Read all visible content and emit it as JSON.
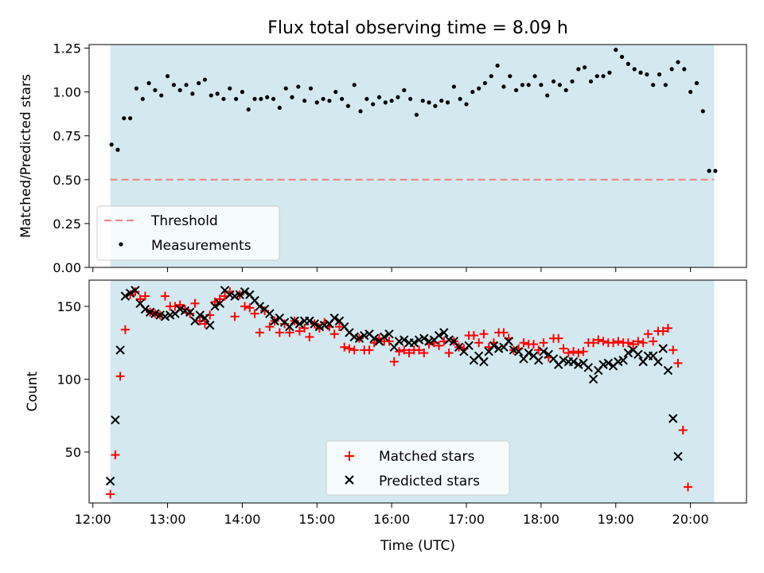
{
  "figure": {
    "title": "Flux total observing time = 8.09 h"
  },
  "chart_data": [
    {
      "type": "scatter",
      "panel": "top",
      "title": "Flux total observing time = 8.09 h",
      "xlabel": "",
      "ylabel": "Matched/Predicted stars",
      "xlim": [
        "11:57",
        "20:45"
      ],
      "ylim": [
        0.0,
        1.27
      ],
      "yticks": [
        "0.00",
        "0.25",
        "0.50",
        "0.75",
        "1.00",
        "1.25"
      ],
      "shaded_interval": [
        "12:14",
        "20:19"
      ],
      "shade_color": "#d3e9ef",
      "threshold": {
        "name": "Threshold",
        "value": 0.5,
        "color": "#f08080",
        "style": "dashed"
      },
      "legend": {
        "position": "lower-left",
        "entries": [
          "Threshold",
          "Measurements"
        ]
      },
      "series": [
        {
          "name": "Measurements",
          "color": "#000000",
          "marker": "dot",
          "x": [
            "12:15",
            "12:20",
            "12:25",
            "12:30",
            "12:35",
            "12:40",
            "12:45",
            "12:50",
            "12:55",
            "13:00",
            "13:05",
            "13:10",
            "13:15",
            "13:20",
            "13:25",
            "13:30",
            "13:35",
            "13:40",
            "13:45",
            "13:50",
            "13:55",
            "14:00",
            "14:05",
            "14:10",
            "14:15",
            "14:20",
            "14:25",
            "14:30",
            "14:35",
            "14:40",
            "14:45",
            "14:50",
            "14:55",
            "15:00",
            "15:05",
            "15:10",
            "15:15",
            "15:20",
            "15:25",
            "15:30",
            "15:35",
            "15:40",
            "15:45",
            "15:50",
            "15:55",
            "16:00",
            "16:05",
            "16:10",
            "16:15",
            "16:20",
            "16:25",
            "16:30",
            "16:35",
            "16:40",
            "16:45",
            "16:50",
            "16:55",
            "17:00",
            "17:05",
            "17:10",
            "17:15",
            "17:20",
            "17:25",
            "17:30",
            "17:35",
            "17:40",
            "17:45",
            "17:50",
            "17:55",
            "18:00",
            "18:05",
            "18:10",
            "18:15",
            "18:20",
            "18:25",
            "18:30",
            "18:35",
            "18:40",
            "18:45",
            "18:50",
            "18:55",
            "19:00",
            "19:05",
            "19:10",
            "19:15",
            "19:20",
            "19:25",
            "19:30",
            "19:35",
            "19:40",
            "19:45",
            "19:50",
            "19:55",
            "20:00",
            "20:05",
            "20:10",
            "20:15",
            "20:20"
          ],
          "y": [
            0.7,
            0.67,
            0.85,
            0.85,
            1.02,
            0.96,
            1.05,
            1.01,
            0.98,
            1.09,
            1.04,
            1.01,
            1.04,
            0.99,
            1.05,
            1.07,
            0.98,
            0.99,
            0.96,
            1.02,
            0.96,
            1.0,
            0.9,
            0.96,
            0.96,
            0.97,
            0.96,
            0.91,
            1.02,
            0.97,
            1.03,
            0.95,
            1.02,
            0.94,
            0.96,
            0.95,
            1.0,
            0.96,
            0.92,
            1.04,
            0.89,
            0.96,
            0.93,
            0.97,
            0.94,
            0.95,
            0.97,
            1.01,
            0.96,
            0.87,
            0.95,
            0.94,
            0.92,
            0.95,
            0.94,
            1.03,
            0.96,
            0.93,
            1.0,
            1.02,
            1.05,
            1.09,
            1.15,
            1.03,
            1.09,
            1.01,
            1.04,
            1.04,
            1.09,
            1.04,
            0.98,
            1.06,
            1.04,
            1.01,
            1.06,
            1.13,
            1.14,
            1.06,
            1.09,
            1.09,
            1.11,
            1.24,
            1.2,
            1.16,
            1.13,
            1.11,
            1.1,
            1.04,
            1.1,
            1.04,
            1.13,
            1.17,
            1.13,
            1.0,
            1.05,
            0.89,
            0.55,
            0.55
          ]
        }
      ]
    },
    {
      "type": "scatter",
      "panel": "bottom",
      "xlabel": "Time (UTC)",
      "ylabel": "Count",
      "xlim": [
        "11:57",
        "20:45"
      ],
      "ylim": [
        15,
        168
      ],
      "xticks": [
        "12:00",
        "13:00",
        "14:00",
        "15:00",
        "16:00",
        "17:00",
        "18:00",
        "19:00",
        "20:00"
      ],
      "yticks": [
        "50",
        "100",
        "150"
      ],
      "shaded_interval": [
        "12:14",
        "20:19"
      ],
      "shade_color": "#d3e9ef",
      "legend": {
        "position": "lower-center",
        "entries": [
          "Matched stars",
          "Predicted stars"
        ]
      },
      "x": [
        "12:14",
        "12:18",
        "12:22",
        "12:26",
        "12:30",
        "12:34",
        "12:38",
        "12:42",
        "12:46",
        "12:50",
        "12:54",
        "12:58",
        "13:02",
        "13:06",
        "13:10",
        "13:14",
        "13:18",
        "13:22",
        "13:26",
        "13:30",
        "13:34",
        "13:38",
        "13:42",
        "13:46",
        "13:50",
        "13:54",
        "13:58",
        "14:02",
        "14:06",
        "14:10",
        "14:14",
        "14:18",
        "14:22",
        "14:26",
        "14:30",
        "14:34",
        "14:38",
        "14:42",
        "14:46",
        "14:50",
        "14:54",
        "14:58",
        "15:02",
        "15:06",
        "15:10",
        "15:14",
        "15:18",
        "15:22",
        "15:26",
        "15:30",
        "15:34",
        "15:38",
        "15:42",
        "15:46",
        "15:50",
        "15:54",
        "15:58",
        "16:02",
        "16:06",
        "16:10",
        "16:14",
        "16:18",
        "16:22",
        "16:26",
        "16:30",
        "16:34",
        "16:38",
        "16:42",
        "16:46",
        "16:50",
        "16:54",
        "16:58",
        "17:02",
        "17:06",
        "17:10",
        "17:14",
        "17:18",
        "17:22",
        "17:26",
        "17:30",
        "17:34",
        "17:38",
        "17:42",
        "17:46",
        "17:50",
        "17:54",
        "17:58",
        "18:02",
        "18:06",
        "18:10",
        "18:14",
        "18:18",
        "18:22",
        "18:26",
        "18:30",
        "18:34",
        "18:38",
        "18:42",
        "18:46",
        "18:50",
        "18:54",
        "18:58",
        "19:02",
        "19:06",
        "19:10",
        "19:14",
        "19:18",
        "19:22",
        "19:26",
        "19:30",
        "19:34",
        "19:38",
        "19:42",
        "19:46",
        "19:50",
        "19:54",
        "19:58",
        "20:02",
        "20:06",
        "20:10",
        "20:14",
        "20:18"
      ],
      "series": [
        {
          "name": "Matched stars",
          "color": "#ff0000",
          "marker": "plus",
          "values": [
            21,
            48,
            102,
            134,
            158,
            160,
            155,
            157,
            146,
            145,
            144,
            157,
            150,
            150,
            151,
            148,
            145,
            152,
            140,
            138,
            144,
            153,
            155,
            157,
            160,
            143,
            158,
            150,
            149,
            145,
            132,
            147,
            136,
            140,
            132,
            138,
            132,
            140,
            133,
            135,
            129,
            138,
            135,
            139,
            136,
            131,
            136,
            122,
            121,
            120,
            128,
            120,
            120,
            125,
            128,
            126,
            126,
            112,
            119,
            120,
            118,
            120,
            120,
            118,
            124,
            125,
            123,
            126,
            118,
            126,
            122,
            121,
            130,
            130,
            125,
            131,
            122,
            125,
            132,
            132,
            128,
            120,
            121,
            125,
            124,
            124,
            120,
            125,
            115,
            128,
            128,
            121,
            118,
            119,
            118,
            119,
            125,
            125,
            127,
            126,
            125,
            125,
            126,
            125,
            125,
            124,
            126,
            125,
            131,
            126,
            133,
            133,
            135,
            120,
            111,
            65,
            26
          ],
          "x_offset_start": 0
        },
        {
          "name": "Predicted stars",
          "color": "#000000",
          "marker": "x",
          "values": [
            30,
            72,
            120,
            157,
            159,
            161,
            152,
            148,
            146,
            145,
            144,
            143,
            144,
            145,
            148,
            147,
            146,
            140,
            144,
            142,
            137,
            150,
            152,
            161,
            158,
            157,
            158,
            160,
            158,
            154,
            150,
            148,
            145,
            140,
            142,
            139,
            136,
            140,
            138,
            140,
            140,
            138,
            136,
            137,
            138,
            142,
            140,
            136,
            132,
            129,
            128,
            130,
            131,
            128,
            126,
            129,
            131,
            122,
            126,
            127,
            125,
            125,
            127,
            128,
            126,
            127,
            130,
            132,
            127,
            126,
            122,
            119,
            123,
            113,
            116,
            112,
            119,
            123,
            121,
            122,
            126,
            120,
            119,
            114,
            118,
            116,
            113,
            119,
            117,
            114,
            110,
            113,
            112,
            112,
            110,
            111,
            108,
            100,
            106,
            110,
            111,
            109,
            112,
            113,
            118,
            120,
            117,
            112,
            116,
            116,
            112,
            121,
            106,
            73,
            47
          ],
          "x_offset_start": 0
        }
      ]
    }
  ]
}
